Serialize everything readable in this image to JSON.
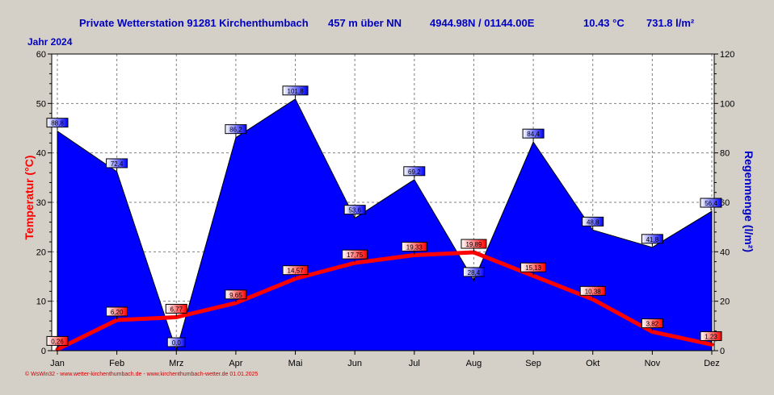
{
  "header": {
    "station": "Private Wetterstation 91281 Kirchenthumbach",
    "elevation": "457 m über NN",
    "coords": "4944.98N / 01144.00E",
    "avg_temp": "10.43 °C",
    "total_rain": "731.8 l/m²"
  },
  "year_label": "Jahr  2024",
  "footer": "© WsWin32  -  www.wetter-kirchenthumbach.de  -  www.kirchenthumbach-wetter.de  01.01.2025",
  "colors": {
    "rain": "#0000ff",
    "temp": "#ff0000",
    "plot_bg": "#ffffff",
    "window_bg": "#d4d0c8"
  },
  "chart_data": {
    "type": "area",
    "title": "",
    "categories": [
      "Jan",
      "Feb",
      "Mrz",
      "Apr",
      "Mai",
      "Jun",
      "Jul",
      "Aug",
      "Sep",
      "Okt",
      "Nov",
      "Dez"
    ],
    "ylabel_left": "Temperatur  (°C)",
    "ylabel_right": "Regenmenge  (l/m²)",
    "ylim_left": [
      0,
      60
    ],
    "ylim_right": [
      0,
      120
    ],
    "yticks_left": [
      "0",
      "10",
      "20",
      "30",
      "40",
      "50",
      "60"
    ],
    "yticks_right": [
      "0",
      "20",
      "40",
      "60",
      "80",
      "100",
      "120"
    ],
    "grid": true,
    "series": [
      {
        "name": "Regenmenge",
        "axis": "right",
        "type": "area",
        "values": [
          88.8,
          72.4,
          0.0,
          86.2,
          101.8,
          53.6,
          69.2,
          28.4,
          84.4,
          48.8,
          41.8,
          56.4
        ],
        "labels": [
          "88,8",
          "72,4",
          "0,0",
          "86,2",
          "101,8",
          "53,6",
          "69,2",
          "28,4",
          "84,4",
          "48,8",
          "41,8",
          "56,4"
        ]
      },
      {
        "name": "Temperatur",
        "axis": "left",
        "type": "line",
        "values": [
          0.26,
          6.2,
          6.77,
          9.65,
          14.57,
          17.75,
          19.33,
          19.89,
          15.13,
          10.38,
          3.82,
          1.23
        ],
        "labels": [
          "0,26",
          "6,20",
          "6,77",
          "9,65",
          "14,57",
          "17,75",
          "19,33",
          "19,89",
          "15,13",
          "10,38",
          "3,82",
          "1,23"
        ]
      }
    ]
  }
}
